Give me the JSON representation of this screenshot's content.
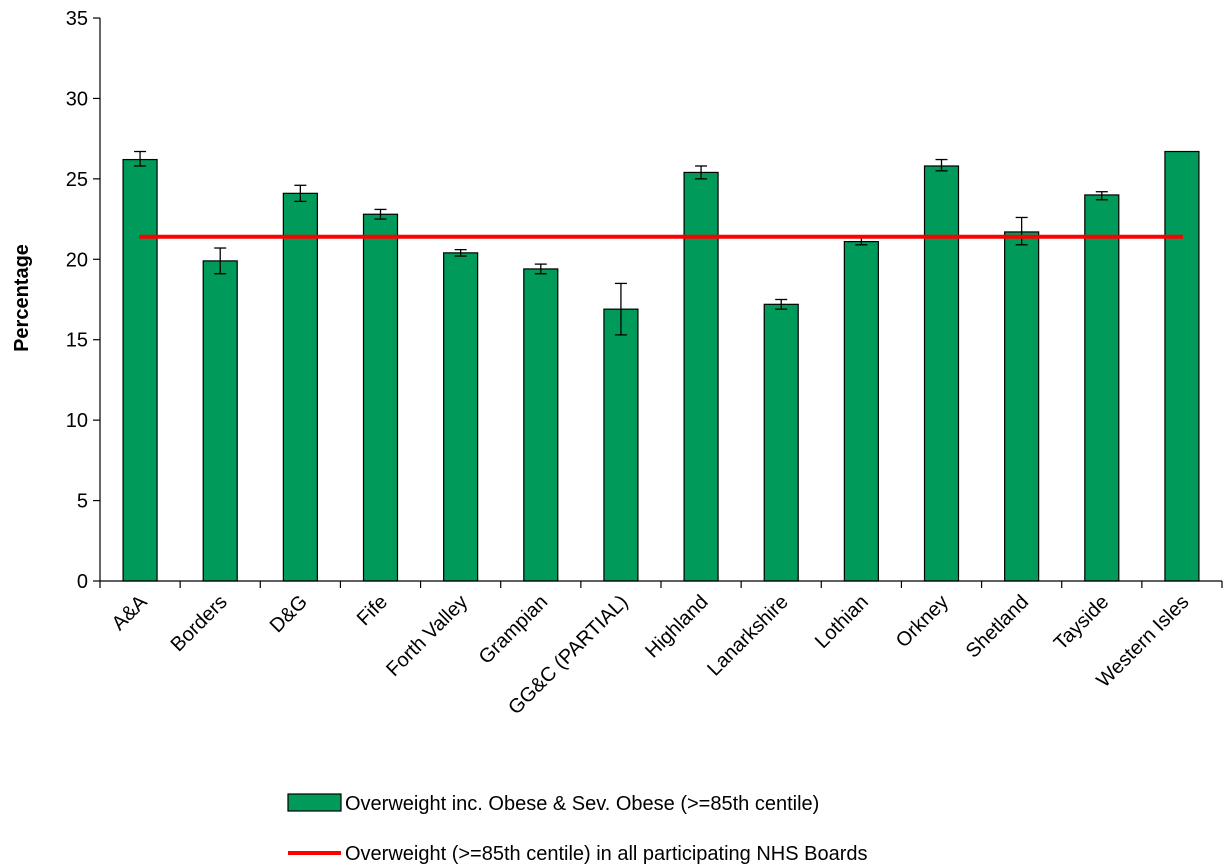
{
  "chart_data": {
    "type": "bar",
    "title": "",
    "xlabel": "",
    "ylabel": "Percentage",
    "ylim": [
      0,
      35
    ],
    "yticks": [
      0,
      5,
      10,
      15,
      20,
      25,
      30,
      35
    ],
    "categories": [
      "A&A",
      "Borders",
      "D&G",
      "Fife",
      "Forth Valley",
      "Grampian",
      "GG&C (PARTIAL)",
      "Highland",
      "Lanarkshire",
      "Lothian",
      "Orkney",
      "Shetland",
      "Tayside",
      "Western Isles"
    ],
    "series": [
      {
        "name": "Overweight inc. Obese & Sev. Obese (>=85th centile)",
        "type": "bar",
        "color": "#009a5a",
        "values": [
          26.2,
          19.9,
          24.1,
          22.8,
          20.4,
          19.4,
          16.9,
          25.4,
          17.2,
          21.1,
          25.8,
          21.7,
          24.0,
          26.7
        ],
        "error_low": [
          25.8,
          19.1,
          23.6,
          22.5,
          20.2,
          19.1,
          15.3,
          25.0,
          16.9,
          20.9,
          25.5,
          20.9,
          23.7,
          26.7
        ],
        "error_high": [
          26.7,
          20.7,
          24.6,
          23.1,
          20.6,
          19.7,
          18.5,
          25.8,
          17.5,
          21.4,
          26.2,
          22.6,
          24.2,
          26.7
        ]
      },
      {
        "name": "Overweight (>=85th centile) in all participating NHS Boards",
        "type": "line",
        "color": "#ff0000",
        "value": 21.4
      }
    ],
    "grid": false,
    "legend_position": "bottom"
  }
}
